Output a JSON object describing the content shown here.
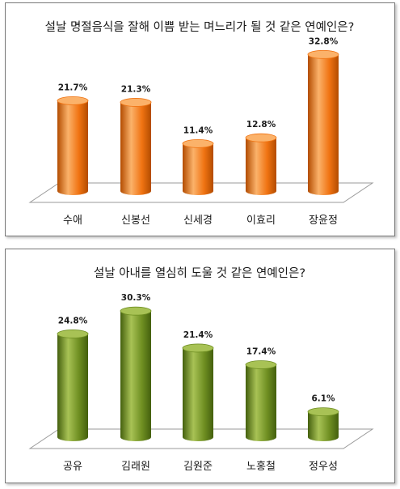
{
  "chart_data": [
    {
      "type": "bar",
      "title": "설날 명절음식을 잘해 이쁨 받는 며느리가 될 것 같은 연예인은?",
      "categories": [
        "수애",
        "신봉선",
        "신세경",
        "이효리",
        "장윤정"
      ],
      "values": [
        21.7,
        21.3,
        11.4,
        12.8,
        32.8
      ],
      "value_labels": [
        "21.7%",
        "21.3%",
        "11.4%",
        "12.8%",
        "32.8%"
      ],
      "ylim": [
        0,
        35
      ],
      "grid": false,
      "legend": "none",
      "color": "#f07312",
      "color_light": "#fbb26a",
      "color_dark": "#b34c00"
    },
    {
      "type": "bar",
      "title": "설날 아내를 열심히 도울 것 같은 연예인은?",
      "categories": [
        "공유",
        "김래원",
        "김원준",
        "노홍철",
        "정우성"
      ],
      "values": [
        24.8,
        30.3,
        21.4,
        17.4,
        6.1
      ],
      "value_labels": [
        "24.8%",
        "30.3%",
        "21.4%",
        "17.4%",
        "6.1%"
      ],
      "ylim": [
        0,
        35
      ],
      "grid": false,
      "legend": "none",
      "color": "#6f8f22",
      "color_light": "#a8c255",
      "color_dark": "#44600e"
    }
  ]
}
